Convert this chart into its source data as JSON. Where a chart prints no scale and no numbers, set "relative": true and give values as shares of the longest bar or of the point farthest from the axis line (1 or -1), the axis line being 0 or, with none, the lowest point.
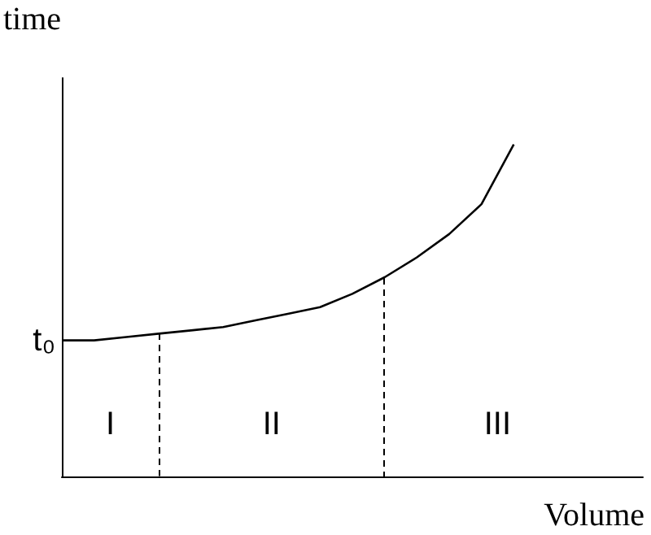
{
  "chart_data": {
    "type": "line",
    "relative": true,
    "ylabel": "time",
    "xlabel": "Volume",
    "color": "#000000",
    "marker": "none",
    "line_style": "solid",
    "grid": false,
    "categories": [
      null,
      null,
      null,
      null,
      null,
      null,
      null,
      null,
      null,
      null,
      null,
      null,
      null,
      null,
      null,
      null,
      null,
      null,
      null
    ],
    "values": [
      0.41,
      0.41,
      0.42,
      0.43,
      0.44,
      0.45,
      0.47,
      0.49,
      0.51,
      0.55,
      0.6,
      0.66,
      0.73,
      0.82,
      1,
      null,
      null,
      null,
      null
    ],
    "annotations": [
      "t₀",
      "I",
      "II",
      "III"
    ]
  }
}
